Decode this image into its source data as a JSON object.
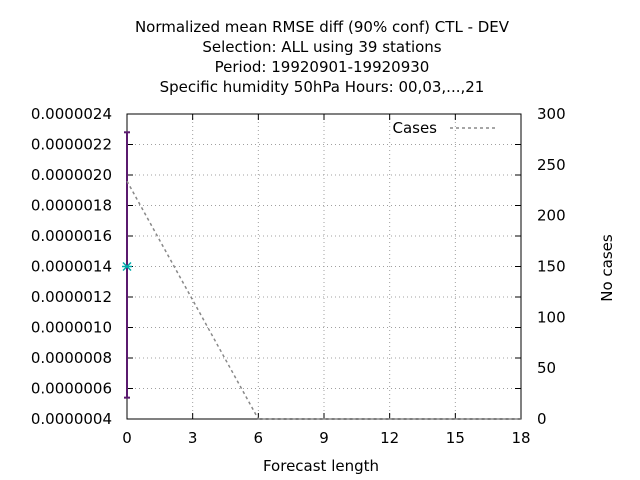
{
  "chart_data": {
    "type": "line",
    "title_lines": [
      "Normalized mean RMSE diff (90% conf) CTL - DEV",
      "Selection: ALL using    39 stations",
      "Period: 19920901-19920930",
      "Specific humidity 50hPa   Hours:  00,03,...,21"
    ],
    "xlabel": "Forecast length",
    "y2label": "No cases",
    "xlim": [
      0,
      18
    ],
    "x_ticks": [
      0,
      3,
      6,
      9,
      12,
      15,
      18
    ],
    "ylim": [
      4e-07,
      2.4e-06
    ],
    "y_ticks": [
      "0.0000004",
      "0.0000006",
      "0.0000008",
      "0.0000010",
      "0.0000012",
      "0.0000014",
      "0.0000016",
      "0.0000018",
      "0.0000020",
      "0.0000022",
      "0.0000024"
    ],
    "y2lim": [
      0,
      300
    ],
    "y2_ticks": [
      0,
      50,
      100,
      150,
      200,
      250,
      300
    ],
    "grid": true,
    "legend_position": "top-right",
    "series": [
      {
        "name": "",
        "axis": "left",
        "color": "#00aaaa",
        "points": [
          {
            "x": 0,
            "y": 1.4e-06
          }
        ],
        "error_bars": [
          {
            "x": 0,
            "low": 5.4e-07,
            "high": 2.28e-06
          }
        ],
        "error_color": "#5a1a6e"
      },
      {
        "name": "Cases",
        "axis": "right",
        "color": "#888888",
        "style": "dashed",
        "x": [
          0,
          1,
          2,
          3,
          4,
          5,
          6,
          7,
          8,
          9,
          10,
          11,
          12,
          13,
          14,
          15,
          16,
          17,
          18
        ],
        "values": [
          234,
          195,
          156,
          117,
          78,
          39,
          0,
          0,
          0,
          0,
          0,
          0,
          0,
          0,
          0,
          0,
          0,
          0,
          0
        ]
      }
    ]
  }
}
